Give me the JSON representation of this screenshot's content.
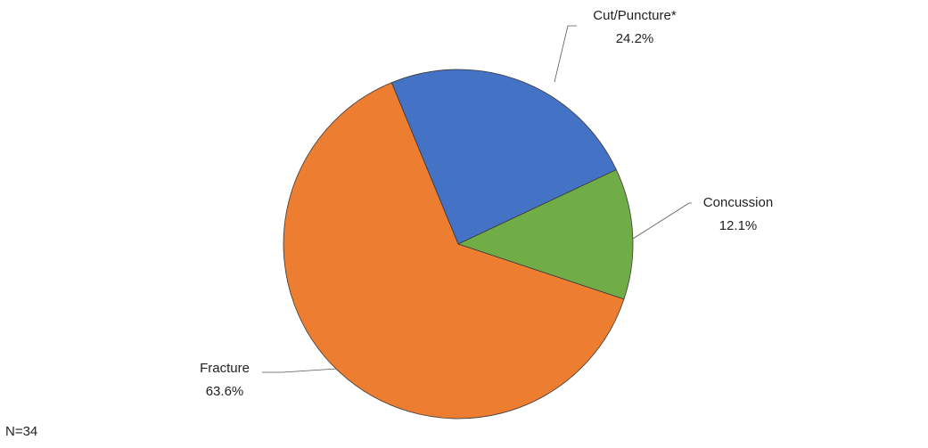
{
  "chart_data": {
    "type": "pie",
    "title": "",
    "slices": [
      {
        "label": "Cut/Puncture*",
        "value": 24.2,
        "value_label": "24.2%",
        "color": "#4472C4"
      },
      {
        "label": "Concussion",
        "value": 12.1,
        "value_label": "12.1%",
        "color": "#70AD47"
      },
      {
        "label": "Fracture",
        "value": 63.6,
        "value_label": "63.6%",
        "color": "#ED7D31"
      }
    ],
    "start_angle_deg": -22.4,
    "direction": "clockwise",
    "legend": "none",
    "data_labels": "outside-with-leader-lines"
  },
  "footnote": "N=34"
}
